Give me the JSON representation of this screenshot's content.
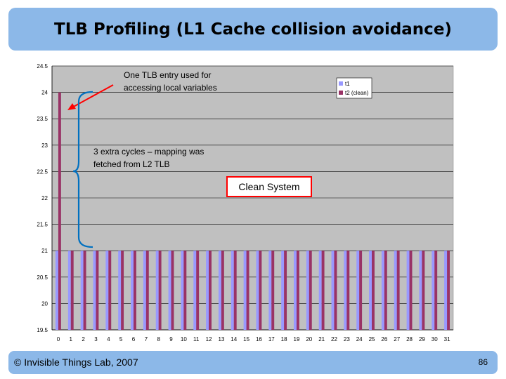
{
  "slide": {
    "title": "TLB Profiling (L1 Cache collision avoidance)",
    "footer_left": "© Invisible Things Lab, 2007",
    "page_number": "86"
  },
  "chart_data": {
    "type": "bar",
    "title": "",
    "xlabel": "",
    "ylabel": "",
    "ylim": [
      19.5,
      24.5
    ],
    "yticks": [
      "19.5",
      "20",
      "20.5",
      "21",
      "21.5",
      "22",
      "22.5",
      "23",
      "23.5",
      "24",
      "24.5"
    ],
    "grid": true,
    "legend_position": "top-right",
    "categories": [
      "0",
      "1",
      "2",
      "3",
      "4",
      "5",
      "6",
      "7",
      "8",
      "9",
      "10",
      "11",
      "12",
      "13",
      "14",
      "15",
      "16",
      "17",
      "18",
      "19",
      "20",
      "21",
      "22",
      "23",
      "24",
      "25",
      "26",
      "27",
      "28",
      "29",
      "30",
      "31"
    ],
    "series": [
      {
        "name": "t1",
        "color": "#9999ff",
        "values": [
          21,
          21,
          21,
          21,
          21,
          21,
          21,
          21,
          21,
          21,
          21,
          21,
          21,
          21,
          21,
          21,
          21,
          21,
          21,
          21,
          21,
          21,
          21,
          21,
          21,
          21,
          21,
          21,
          21,
          21,
          21,
          21
        ]
      },
      {
        "name": "t2 (clean)",
        "color": "#993366",
        "values": [
          24,
          21,
          21,
          21,
          21,
          21,
          21,
          21,
          21,
          21,
          21,
          21,
          21,
          21,
          21,
          21,
          21,
          21,
          21,
          21,
          21,
          21,
          21,
          21,
          21,
          21,
          21,
          21,
          21,
          21,
          21,
          21
        ]
      }
    ],
    "annotations": {
      "tlb_entry": [
        "One TLB entry used for",
        "accessing local variables"
      ],
      "extra_cycles": [
        "3 extra cycles – mapping was",
        "fetched from L2 TLB"
      ],
      "clean_system": "Clean System"
    },
    "colors": {
      "plot_background": "#c0c0c0",
      "arrow": "#ff0000",
      "brace": "#0070c0",
      "clean_box_border": "#ff0000"
    }
  }
}
